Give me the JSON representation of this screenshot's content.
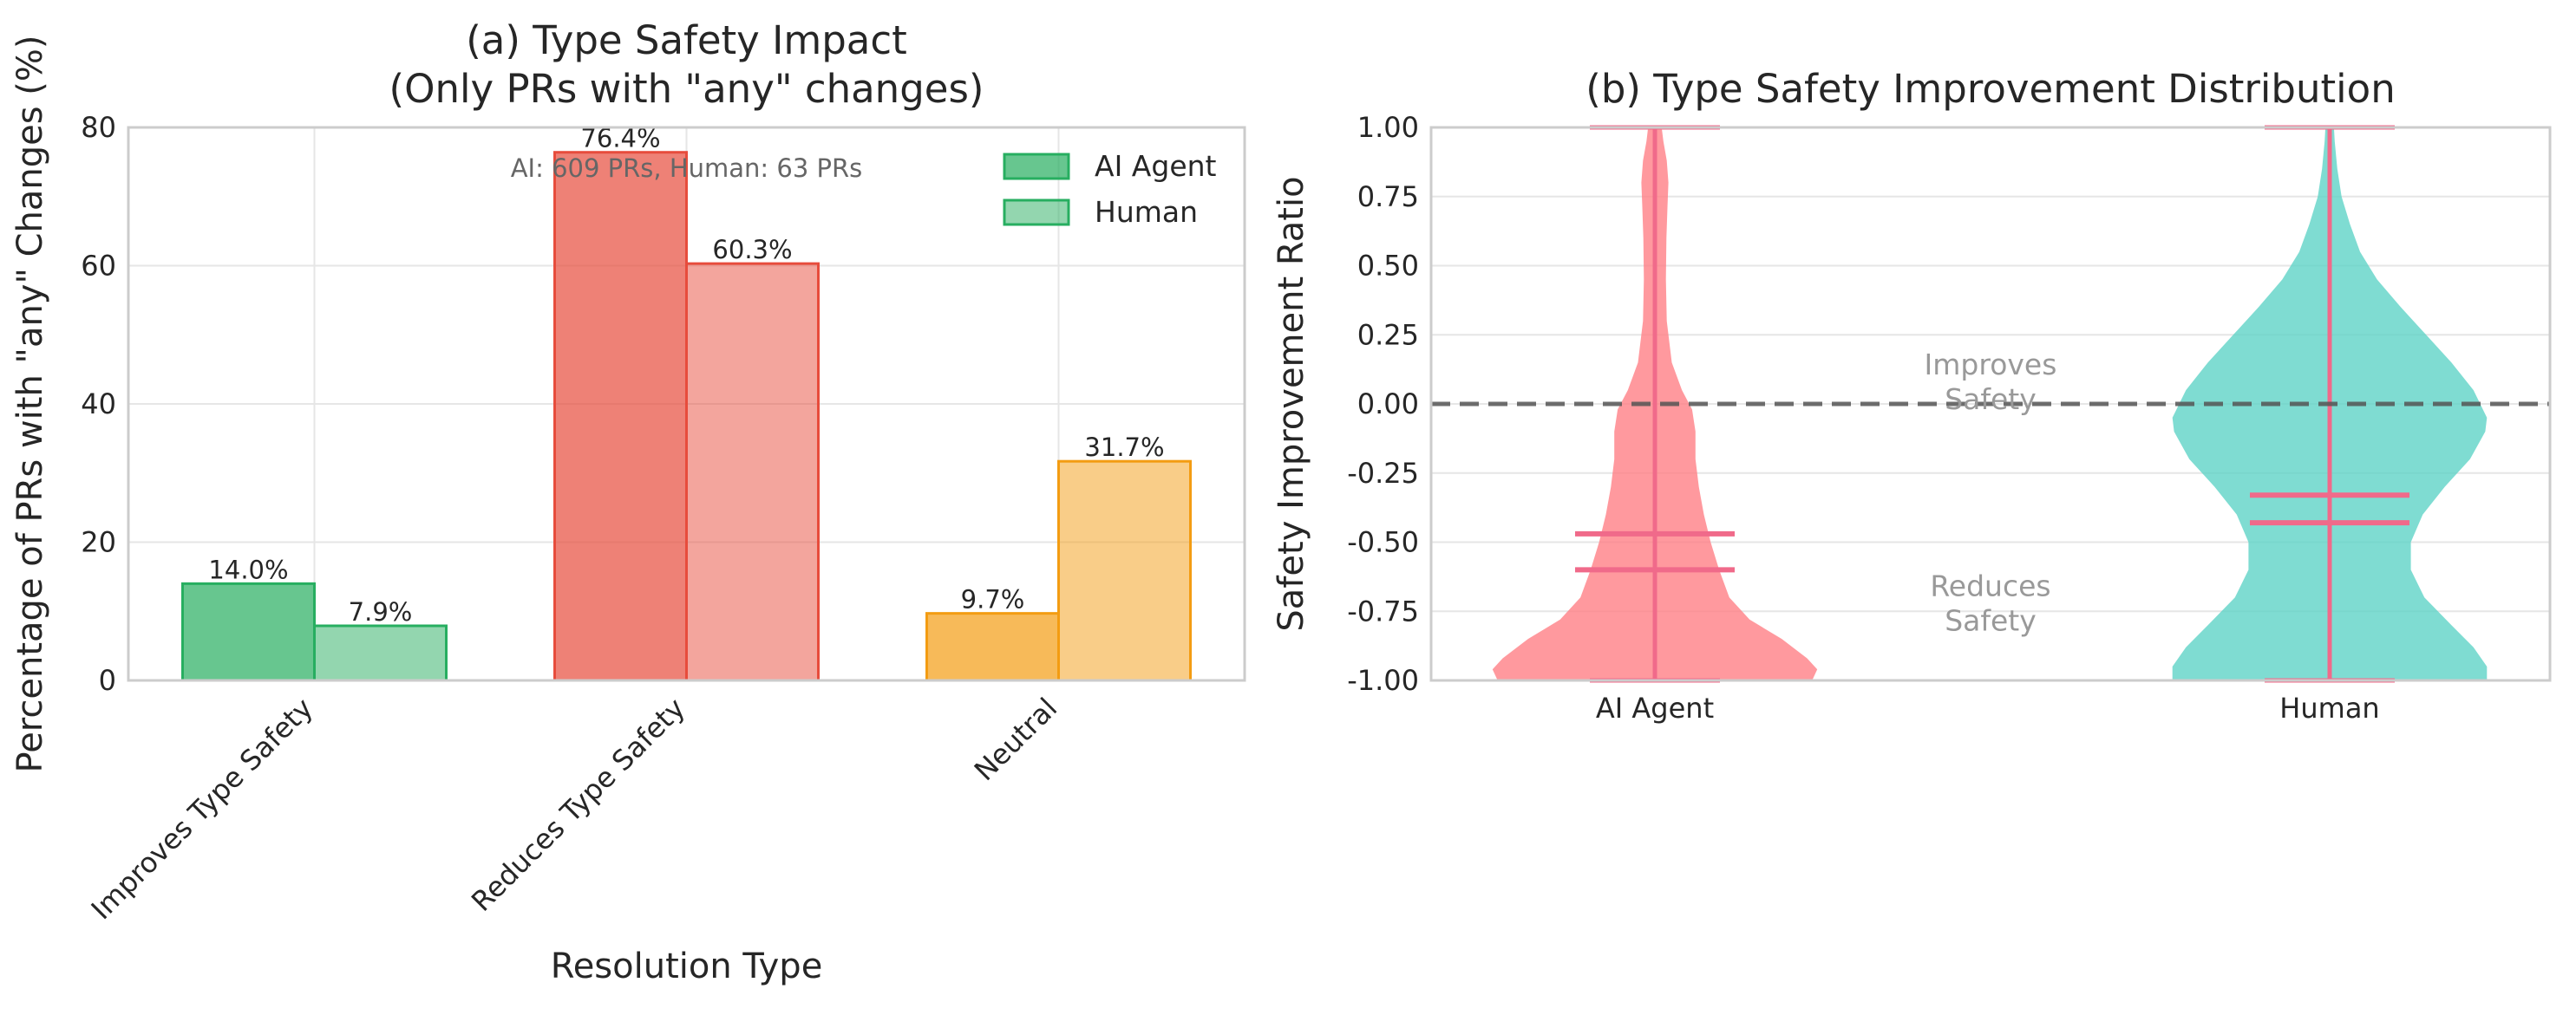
{
  "colors": {
    "improves": "#27ae60",
    "reduces": "#e74c3c",
    "neutral": "#f39c12",
    "ai_violin": "#ff7f86",
    "human_violin": "#5fd3c7",
    "stat_lines": "#f06a8a",
    "grid": "#e6e6e6",
    "frame": "#cccccc",
    "annotation": "#999999",
    "zero_line": "#555555"
  },
  "chart_data": [
    {
      "type": "bar",
      "title": "(a) Type Safety Impact\n(Only PRs with \"any\" changes)",
      "xlabel": "Resolution Type",
      "ylabel": "Percentage of PRs with \"any\" Changes (%)",
      "ylim": [
        0,
        80
      ],
      "yticks": [
        0,
        20,
        40,
        60,
        80
      ],
      "grid": true,
      "legend_position": "top-right",
      "categories": [
        "Improves Type Safety",
        "Reduces Type Safety",
        "Neutral"
      ],
      "series": [
        {
          "name": "AI Agent",
          "values": [
            14.0,
            76.4,
            9.7
          ],
          "labels": [
            "14.0%",
            "76.4%",
            "9.7%"
          ]
        },
        {
          "name": "Human",
          "values": [
            7.9,
            60.3,
            31.7
          ],
          "labels": [
            "7.9%",
            "60.3%",
            "31.7%"
          ]
        }
      ],
      "annotation": "AI: 609 PRs, Human: 63 PRs"
    },
    {
      "type": "violin",
      "title": "(b) Type Safety Improvement Distribution",
      "ylabel": "Safety Improvement Ratio",
      "ylim": [
        -1.0,
        1.0
      ],
      "yticks": [
        "-1.00",
        "-0.75",
        "-0.50",
        "-0.25",
        "0.00",
        "0.25",
        "0.50",
        "0.75",
        "1.00"
      ],
      "grid": true,
      "categories": [
        "AI Agent",
        "Human"
      ],
      "series": [
        {
          "name": "AI Agent",
          "min": -1.0,
          "max": 1.0,
          "mean": -0.47,
          "median": -0.6,
          "profile": [
            [
              -1.0,
              0.93
            ],
            [
              -0.96,
              0.96
            ],
            [
              -0.92,
              0.9
            ],
            [
              -0.85,
              0.75
            ],
            [
              -0.78,
              0.56
            ],
            [
              -0.7,
              0.44
            ],
            [
              -0.6,
              0.38
            ],
            [
              -0.5,
              0.33
            ],
            [
              -0.4,
              0.29
            ],
            [
              -0.3,
              0.26
            ],
            [
              -0.2,
              0.24
            ],
            [
              -0.1,
              0.24
            ],
            [
              -0.02,
              0.22
            ],
            [
              0.05,
              0.16
            ],
            [
              0.15,
              0.1
            ],
            [
              0.3,
              0.07
            ],
            [
              0.45,
              0.065
            ],
            [
              0.6,
              0.068
            ],
            [
              0.72,
              0.075
            ],
            [
              0.8,
              0.08
            ],
            [
              0.88,
              0.07
            ],
            [
              0.95,
              0.05
            ],
            [
              1.0,
              0.04
            ]
          ]
        },
        {
          "name": "Human",
          "min": -1.0,
          "max": 1.0,
          "mean": -0.33,
          "median": -0.43,
          "profile": [
            [
              -1.0,
              0.93
            ],
            [
              -0.95,
              0.93
            ],
            [
              -0.88,
              0.85
            ],
            [
              -0.8,
              0.72
            ],
            [
              -0.7,
              0.56
            ],
            [
              -0.6,
              0.48
            ],
            [
              -0.5,
              0.48
            ],
            [
              -0.4,
              0.55
            ],
            [
              -0.3,
              0.68
            ],
            [
              -0.2,
              0.83
            ],
            [
              -0.1,
              0.92
            ],
            [
              -0.05,
              0.93
            ],
            [
              0.05,
              0.85
            ],
            [
              0.15,
              0.72
            ],
            [
              0.25,
              0.57
            ],
            [
              0.35,
              0.42
            ],
            [
              0.45,
              0.28
            ],
            [
              0.55,
              0.18
            ],
            [
              0.65,
              0.12
            ],
            [
              0.75,
              0.07
            ],
            [
              0.85,
              0.045
            ],
            [
              0.95,
              0.03
            ],
            [
              1.0,
              0.025
            ]
          ]
        }
      ],
      "reference_line": 0.0,
      "annotations": [
        {
          "text": [
            "Improves",
            "Safety"
          ],
          "y": 0.05
        },
        {
          "text": [
            "Reduces",
            "Safety"
          ],
          "y": -0.75
        }
      ]
    }
  ]
}
